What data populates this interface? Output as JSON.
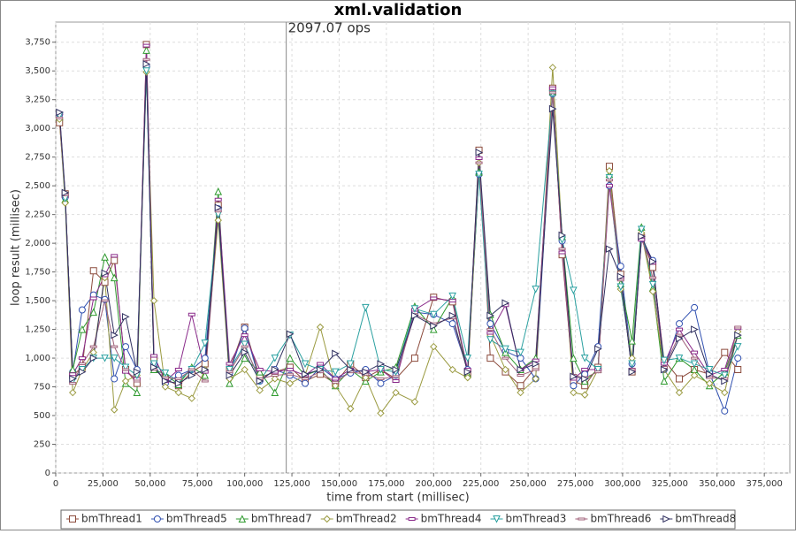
{
  "chart_data": {
    "type": "line",
    "title": "xml.validation",
    "x_label": "time from start (millisec)",
    "y_label": "loop result (millisec)",
    "annotations": [
      {
        "x": 122000,
        "text": "2097.07 ops"
      }
    ],
    "xlim": [
      0,
      388500
    ],
    "ylim": [
      0,
      3925
    ],
    "grid": true,
    "legend": "bottom",
    "xticks": [
      0,
      {
        "value": 25000,
        "label": "25,000"
      },
      {
        "value": 50000,
        "label": "50,000"
      },
      {
        "value": 75000,
        "label": "75,000"
      },
      {
        "value": 100000,
        "label": "100,000"
      },
      {
        "value": 125000,
        "label": "125,000"
      },
      {
        "value": 150000,
        "label": "150,000"
      },
      {
        "value": 175000,
        "label": "175,000"
      },
      {
        "value": 200000,
        "label": "200,000"
      },
      {
        "value": 225000,
        "label": "225,000"
      },
      {
        "value": 250000,
        "label": "250,000"
      },
      {
        "value": 275000,
        "label": "275,000"
      },
      {
        "value": 300000,
        "label": "300,000"
      },
      {
        "value": 325000,
        "label": "325,000"
      },
      {
        "value": 350000,
        "label": "350,000"
      },
      {
        "value": 375000,
        "label": "375,000"
      }
    ],
    "yticks": [
      0,
      250,
      500,
      750,
      {
        "value": 1000,
        "label": "1,000"
      },
      {
        "value": 1250,
        "label": "1,250"
      },
      {
        "value": 1500,
        "label": "1,500"
      },
      {
        "value": 1750,
        "label": "1,750"
      },
      {
        "value": 2000,
        "label": "2,000"
      },
      {
        "value": 2250,
        "label": "2,250"
      },
      {
        "value": 2500,
        "label": "2,500"
      },
      {
        "value": 2750,
        "label": "2,750"
      },
      {
        "value": 3000,
        "label": "3,000"
      },
      {
        "value": 3250,
        "label": "3,250"
      },
      {
        "value": 3500,
        "label": "3,500"
      },
      {
        "value": 3750,
        "label": "3,750"
      }
    ],
    "x": [
      2000,
      5000,
      9000,
      14000,
      20000,
      26000,
      31000,
      37000,
      43000,
      48000,
      52000,
      58000,
      65000,
      72000,
      79000,
      86000,
      92000,
      100000,
      108000,
      116000,
      124000,
      132000,
      140000,
      148000,
      156000,
      164000,
      172000,
      180000,
      190000,
      200000,
      210000,
      218000,
      224000,
      230000,
      238000,
      246000,
      254000,
      263000,
      268000,
      274000,
      280000,
      287000,
      293000,
      299000,
      305000,
      310000,
      316000,
      322000,
      330000,
      338000,
      346000,
      354000,
      361000
    ],
    "series": [
      {
        "name": "bmThread1",
        "color": "#8c4b3c",
        "marker": "square",
        "values": [
          3050,
          2430,
          850,
          920,
          1760,
          1660,
          1850,
          900,
          780,
          3730,
          1000,
          820,
          760,
          880,
          950,
          2330,
          900,
          1270,
          830,
          880,
          920,
          800,
          860,
          780,
          950,
          830,
          900,
          820,
          1000,
          1530,
          1490,
          870,
          2810,
          1000,
          880,
          760,
          920,
          3350,
          1900,
          800,
          760,
          920,
          2670,
          1730,
          880,
          2050,
          1790,
          980,
          820,
          900,
          860,
          1050,
          900
        ]
      },
      {
        "name": "bmThread5",
        "color": "#3050b0",
        "marker": "circle",
        "values": [
          3120,
          2400,
          880,
          1420,
          1550,
          1510,
          820,
          1100,
          900,
          3540,
          950,
          780,
          850,
          900,
          1000,
          2300,
          870,
          1260,
          800,
          900,
          850,
          780,
          920,
          820,
          870,
          900,
          780,
          850,
          1400,
          1380,
          1300,
          900,
          2600,
          1300,
          1060,
          1000,
          820,
          3300,
          2020,
          760,
          860,
          1100,
          2500,
          1800,
          950,
          2040,
          1850,
          900,
          1300,
          1440,
          870,
          540,
          1000
        ]
      },
      {
        "name": "bmThread7",
        "color": "#2f9a2f",
        "marker": "triangle",
        "values": [
          3100,
          2380,
          900,
          1250,
          1400,
          1880,
          1700,
          780,
          700,
          3680,
          900,
          860,
          770,
          920,
          850,
          2450,
          780,
          1000,
          880,
          700,
          1000,
          850,
          900,
          760,
          900,
          800,
          880,
          920,
          1450,
          1250,
          1530,
          860,
          2620,
          1380,
          1050,
          900,
          1000,
          3320,
          2060,
          1000,
          800,
          900,
          2600,
          1650,
          1150,
          2140,
          1610,
          800,
          1000,
          900,
          760,
          880,
          1200
        ]
      },
      {
        "name": "bmThread2",
        "color": "#9a9a40",
        "marker": "diamond",
        "values": [
          3080,
          2350,
          700,
          900,
          1050,
          1700,
          550,
          800,
          850,
          3490,
          1500,
          750,
          700,
          650,
          900,
          2200,
          820,
          900,
          720,
          820,
          780,
          850,
          1270,
          760,
          560,
          830,
          520,
          700,
          620,
          1100,
          900,
          830,
          2700,
          1200,
          900,
          700,
          820,
          3530,
          2050,
          700,
          680,
          900,
          2630,
          1600,
          1000,
          2090,
          1580,
          900,
          700,
          850,
          780,
          700,
          1230
        ]
      },
      {
        "name": "bmThread4",
        "color": "#8a2a8a",
        "marker": "hbar",
        "values": [
          3130,
          2410,
          860,
          1000,
          1520,
          1720,
          1890,
          880,
          820,
          3720,
          1020,
          800,
          900,
          1380,
          880,
          2380,
          950,
          1200,
          900,
          880,
          900,
          850,
          950,
          820,
          900,
          880,
          900,
          800,
          1420,
          1520,
          1500,
          900,
          2740,
          1220,
          1460,
          900,
          980,
          3350,
          1920,
          820,
          900,
          900,
          2500,
          1700,
          900,
          2030,
          1830,
          950,
          1250,
          1050,
          850,
          900,
          1260
        ]
      },
      {
        "name": "bmThread3",
        "color": "#2aa0a0",
        "marker": "triangle-down",
        "values": [
          3110,
          2390,
          800,
          900,
          1000,
          1000,
          1000,
          920,
          850,
          3500,
          950,
          870,
          800,
          900,
          1130,
          2250,
          900,
          1120,
          800,
          1000,
          1200,
          950,
          900,
          880,
          950,
          1440,
          900,
          880,
          1430,
          1380,
          1540,
          1000,
          2600,
          1160,
          1080,
          1050,
          1600,
          3300,
          2030,
          1590,
          1000,
          900,
          2570,
          1620,
          950,
          2120,
          1640,
          980,
          1000,
          950,
          900,
          850,
          1100
        ]
      },
      {
        "name": "bmThread6",
        "color": "#a0607a",
        "marker": "dash-circle",
        "values": [
          3090,
          2420,
          780,
          950,
          1100,
          1500,
          1100,
          900,
          800,
          3600,
          900,
          830,
          820,
          900,
          800,
          2280,
          880,
          1100,
          820,
          850,
          860,
          820,
          880,
          790,
          880,
          860,
          820,
          840,
          1380,
          1300,
          1350,
          880,
          2700,
          1250,
          1000,
          850,
          900,
          3310,
          1950,
          850,
          830,
          880,
          2550,
          1680,
          900,
          2060,
          1700,
          920,
          1200,
          1000,
          830,
          820,
          1270
        ]
      },
      {
        "name": "bmThread8",
        "color": "#303060",
        "marker": "triangle-right",
        "values": [
          3140,
          2440,
          820,
          880,
          1000,
          1740,
          1200,
          1360,
          880,
          3560,
          920,
          800,
          780,
          850,
          900,
          2310,
          850,
          1050,
          800,
          900,
          1210,
          860,
          900,
          1040,
          900,
          880,
          950,
          900,
          1370,
          1280,
          1370,
          880,
          2790,
          1370,
          1480,
          900,
          950,
          3170,
          2070,
          840,
          820,
          1080,
          1950,
          1710,
          880,
          2060,
          1840,
          900,
          1170,
          1250,
          860,
          800,
          1200
        ]
      }
    ]
  }
}
